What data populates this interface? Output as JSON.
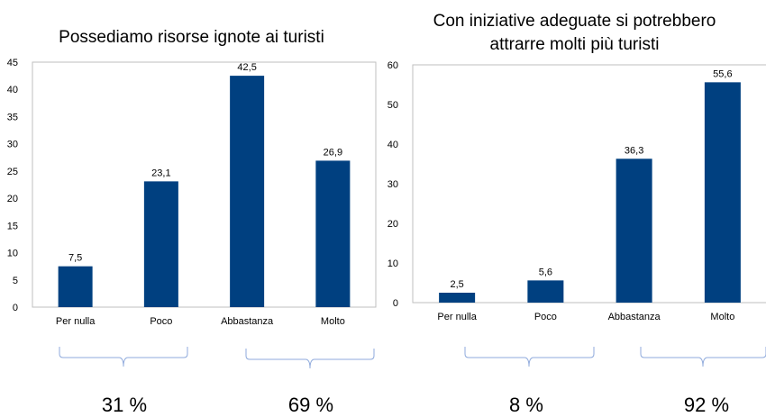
{
  "charts": [
    {
      "type": "bar",
      "title": "Possediamo risorse ignote ai turisti",
      "categories": [
        "Per nulla",
        "Poco",
        "Abbastanza",
        "Molto"
      ],
      "values": [
        7.5,
        23.1,
        42.5,
        26.9
      ],
      "value_labels": [
        "7,5",
        "23,1",
        "42,5",
        "26,9"
      ],
      "yticks": [
        0,
        5,
        10,
        15,
        20,
        25,
        30,
        35,
        40,
        45
      ],
      "ylim": [
        0,
        45
      ],
      "groups": [
        {
          "label": "31 %",
          "value": 31
        },
        {
          "label": "69 %",
          "value": 69
        }
      ]
    },
    {
      "type": "bar",
      "title_lines": [
        "Con iniziative adeguate si potrebbero",
        "attrarre molti più turisti"
      ],
      "categories": [
        "Per nulla",
        "Poco",
        "Abbastanza",
        "Molto"
      ],
      "values": [
        2.5,
        5.6,
        36.3,
        55.6
      ],
      "value_labels": [
        "2,5",
        "5,6",
        "36,3",
        "55,6"
      ],
      "yticks": [
        0,
        10,
        20,
        30,
        40,
        50,
        60
      ],
      "ylim": [
        0,
        60
      ],
      "groups": [
        {
          "label": "8 %",
          "value": 8
        },
        {
          "label": "92 %",
          "value": 92
        }
      ]
    }
  ],
  "colors": {
    "bar": "#004080",
    "axis": "#bfbfbf",
    "brace": "#8faadc"
  },
  "chart_data": [
    {
      "type": "bar",
      "title": "Possediamo risorse ignote ai turisti",
      "categories": [
        "Per nulla",
        "Poco",
        "Abbastanza",
        "Molto"
      ],
      "values": [
        7.5,
        23.1,
        42.5,
        26.9
      ],
      "ylim": [
        0,
        45
      ],
      "grid": false,
      "legend": "none"
    },
    {
      "type": "bar",
      "title": "Con iniziative adeguate si potrebbero attrarre molti più turisti",
      "categories": [
        "Per nulla",
        "Poco",
        "Abbastanza",
        "Molto"
      ],
      "values": [
        2.5,
        5.6,
        36.3,
        55.6
      ],
      "ylim": [
        0,
        60
      ],
      "grid": false,
      "legend": "none"
    }
  ]
}
